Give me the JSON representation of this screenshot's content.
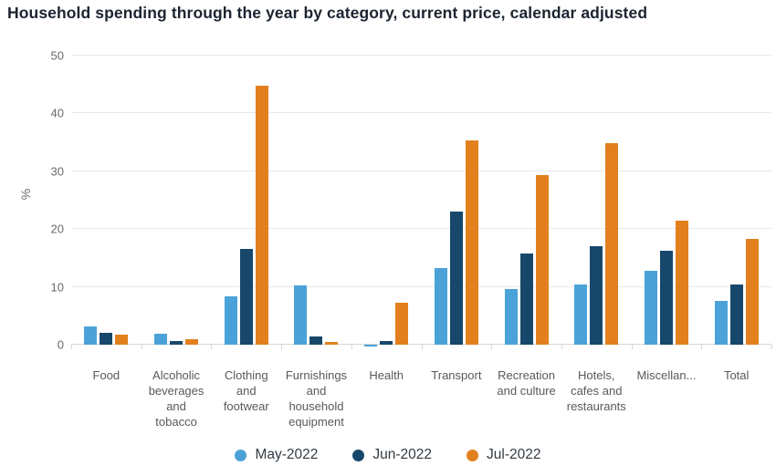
{
  "title": "Household spending through the year by category, current price, calendar adjusted",
  "colors": {
    "may": "#4aa2d8",
    "jun": "#17486b",
    "jul": "#e2801e",
    "gridline": "#e8e8e8",
    "axis_line": "#d6d6d6",
    "tick_text": "#6a6a6a",
    "category_text": "#595959",
    "title_text": "#1b2430",
    "legend_text": "#333b44",
    "background": "#ffffff"
  },
  "chart_data": {
    "type": "bar",
    "title": "Household spending through the year by category, current price, calendar adjusted",
    "xlabel": "",
    "ylabel": "%",
    "ylim": [
      0,
      50
    ],
    "yticks": [
      0,
      10,
      20,
      30,
      40,
      50
    ],
    "grid": true,
    "legend_position": "bottom",
    "categories": [
      "Food",
      "Alcoholic beverages and tobacco",
      "Clothing and footwear",
      "Furnishings and household equipment",
      "Health",
      "Transport",
      "Recreation and culture",
      "Hotels, cafes and restaurants",
      "Miscellan...",
      "Total"
    ],
    "series": [
      {
        "name": "May-2022",
        "color": "#4aa2d8",
        "values": [
          3.2,
          1.9,
          8.3,
          10.2,
          -0.3,
          13.2,
          9.7,
          10.4,
          12.7,
          7.6
        ]
      },
      {
        "name": "Jun-2022",
        "color": "#17486b",
        "values": [
          2.1,
          0.7,
          16.5,
          1.4,
          0.7,
          23.1,
          15.7,
          17.1,
          16.2,
          10.4
        ]
      },
      {
        "name": "Jul-2022",
        "color": "#e2801e",
        "values": [
          1.7,
          1.0,
          44.8,
          0.4,
          7.3,
          35.3,
          29.4,
          34.9,
          21.5,
          18.3
        ]
      }
    ]
  }
}
